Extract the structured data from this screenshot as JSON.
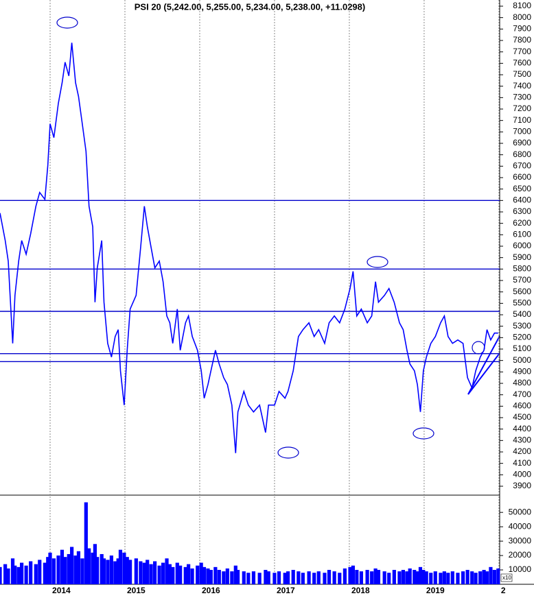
{
  "chart_data": [
    {
      "type": "line",
      "title": "PSI 20 (5,242.00, 5,255.00, 5,234.00, 5,238.00, +11.0298)",
      "color": "#0000ff",
      "x": [
        2013.33,
        2013.4,
        2013.44,
        2013.5,
        2013.53,
        2013.58,
        2013.62,
        2013.68,
        2013.74,
        2013.81,
        2013.86,
        2013.93,
        2013.97,
        2014.0,
        2014.05,
        2014.11,
        2014.16,
        2014.2,
        2014.25,
        2014.29,
        2014.34,
        2014.38,
        2014.43,
        2014.48,
        2014.52,
        2014.57,
        2014.6,
        2014.63,
        2014.69,
        2014.72,
        2014.77,
        2014.82,
        2014.87,
        2014.91,
        2014.94,
        2014.99,
        2015.03,
        2015.07,
        2015.15,
        2015.21,
        2015.26,
        2015.3,
        2015.35,
        2015.4,
        2015.46,
        2015.51,
        2015.56,
        2015.6,
        2015.64,
        2015.7,
        2015.74,
        2015.81,
        2015.85,
        2015.9,
        2015.97,
        2016.02,
        2016.06,
        2016.11,
        2016.15,
        2016.21,
        2016.26,
        2016.32,
        2016.37,
        2016.43,
        2016.48,
        2016.51,
        2016.59,
        2016.65,
        2016.72,
        2016.8,
        2016.88,
        2016.92,
        2017.0,
        2017.06,
        2017.14,
        2017.18,
        2017.25,
        2017.32,
        2017.38,
        2017.46,
        2017.53,
        2017.59,
        2017.67,
        2017.73,
        2017.8,
        2017.87,
        2017.94,
        2018.01,
        2018.05,
        2018.1,
        2018.16,
        2018.24,
        2018.3,
        2018.35,
        2018.39,
        2018.47,
        2018.53,
        2018.6,
        2018.67,
        2018.72,
        2018.77,
        2018.81,
        2018.87,
        2018.91,
        2018.95,
        2018.99,
        2019.03,
        2019.09,
        2019.15,
        2019.22,
        2019.27,
        2019.32,
        2019.38,
        2019.45,
        2019.52,
        2019.58,
        2019.64,
        2019.69,
        2019.75,
        2019.8,
        2019.84,
        2019.89,
        2019.94,
        2019.99
      ],
      "values": [
        6290,
        6050,
        5870,
        5150,
        5570,
        5870,
        6050,
        5930,
        6110,
        6350,
        6470,
        6410,
        6710,
        7070,
        6950,
        7250,
        7430,
        7610,
        7490,
        7780,
        7430,
        7310,
        7070,
        6830,
        6350,
        6170,
        5510,
        5810,
        6050,
        5510,
        5150,
        5030,
        5210,
        5270,
        4910,
        4610,
        5090,
        5450,
        5570,
        5990,
        6350,
        6170,
        5990,
        5810,
        5870,
        5690,
        5390,
        5330,
        5150,
        5450,
        5090,
        5330,
        5390,
        5210,
        5090,
        4910,
        4670,
        4790,
        4910,
        5090,
        4970,
        4850,
        4790,
        4610,
        4190,
        4550,
        4730,
        4610,
        4550,
        4610,
        4370,
        4610,
        4610,
        4730,
        4670,
        4730,
        4910,
        5210,
        5270,
        5330,
        5210,
        5270,
        5150,
        5330,
        5390,
        5330,
        5450,
        5630,
        5780,
        5390,
        5450,
        5330,
        5390,
        5690,
        5510,
        5570,
        5630,
        5510,
        5330,
        5270,
        5090,
        4970,
        4910,
        4790,
        4550,
        4910,
        5030,
        5150,
        5210,
        5330,
        5390,
        5210,
        5150,
        5180,
        5150,
        4850,
        4760,
        4910,
        5030,
        5090,
        5270,
        5180,
        5240,
        5240
      ],
      "xlim": [
        2013.33,
        2020.01
      ],
      "xticks": [
        2014,
        2015,
        2016,
        2017,
        2018,
        2019,
        {
          "value": 2020,
          "label": "2"
        }
      ],
      "ylim": [
        3822,
        8154
      ],
      "yticks": [
        3900,
        4000,
        4100,
        4200,
        4300,
        4400,
        4500,
        4600,
        4700,
        4800,
        4900,
        5000,
        5100,
        5200,
        5300,
        5400,
        5500,
        5600,
        5700,
        5800,
        5900,
        6000,
        6100,
        6200,
        6300,
        6400,
        6500,
        6600,
        6700,
        6800,
        6900,
        7000,
        7100,
        7200,
        7300,
        7400,
        7500,
        7600,
        7700,
        7800,
        7900,
        8000,
        8100
      ],
      "levels": [
        6400,
        5800,
        5430,
        5060,
        4990
      ]
    },
    {
      "type": "bar",
      "color": "#0000ff",
      "multiplier_label": "x10",
      "values": [
        12000,
        14000,
        11000,
        18000,
        13000,
        12000,
        15000,
        13000,
        16000,
        14000,
        17000,
        15000,
        19000,
        22000,
        18000,
        20000,
        24000,
        19000,
        21000,
        26000,
        20000,
        23000,
        18000,
        57000,
        25000,
        22000,
        28000,
        19000,
        21000,
        18000,
        17000,
        20000,
        16000,
        18000,
        24000,
        22000,
        19000,
        17000,
        18000,
        16000,
        15000,
        17000,
        14000,
        16000,
        13000,
        15000,
        18000,
        14000,
        12000,
        15000,
        13000,
        12000,
        14000,
        11000,
        13000,
        15000,
        12000,
        11000,
        10000,
        12000,
        10000,
        9000,
        11000,
        9000,
        13000,
        10000,
        9000,
        8000,
        9000,
        8000,
        10000,
        9000,
        8000,
        9000,
        8000,
        9000,
        10000,
        9000,
        8000,
        9000,
        8000,
        9000,
        8000,
        10000,
        9000,
        8000,
        11000,
        12000,
        13000,
        10000,
        9000,
        10000,
        9000,
        11000,
        10000,
        9000,
        8000,
        10000,
        9000,
        10000,
        9000,
        11000,
        10000,
        9000,
        12000,
        10000,
        9000,
        8000,
        9000,
        8000,
        9000,
        8000,
        9000,
        8000,
        9000,
        10000,
        9000,
        8000,
        9000,
        10000,
        9000,
        12000,
        10000,
        11000
      ],
      "ylim": [
        0,
        62000
      ],
      "yticks": [
        10000,
        20000,
        30000,
        40000,
        50000
      ]
    }
  ]
}
